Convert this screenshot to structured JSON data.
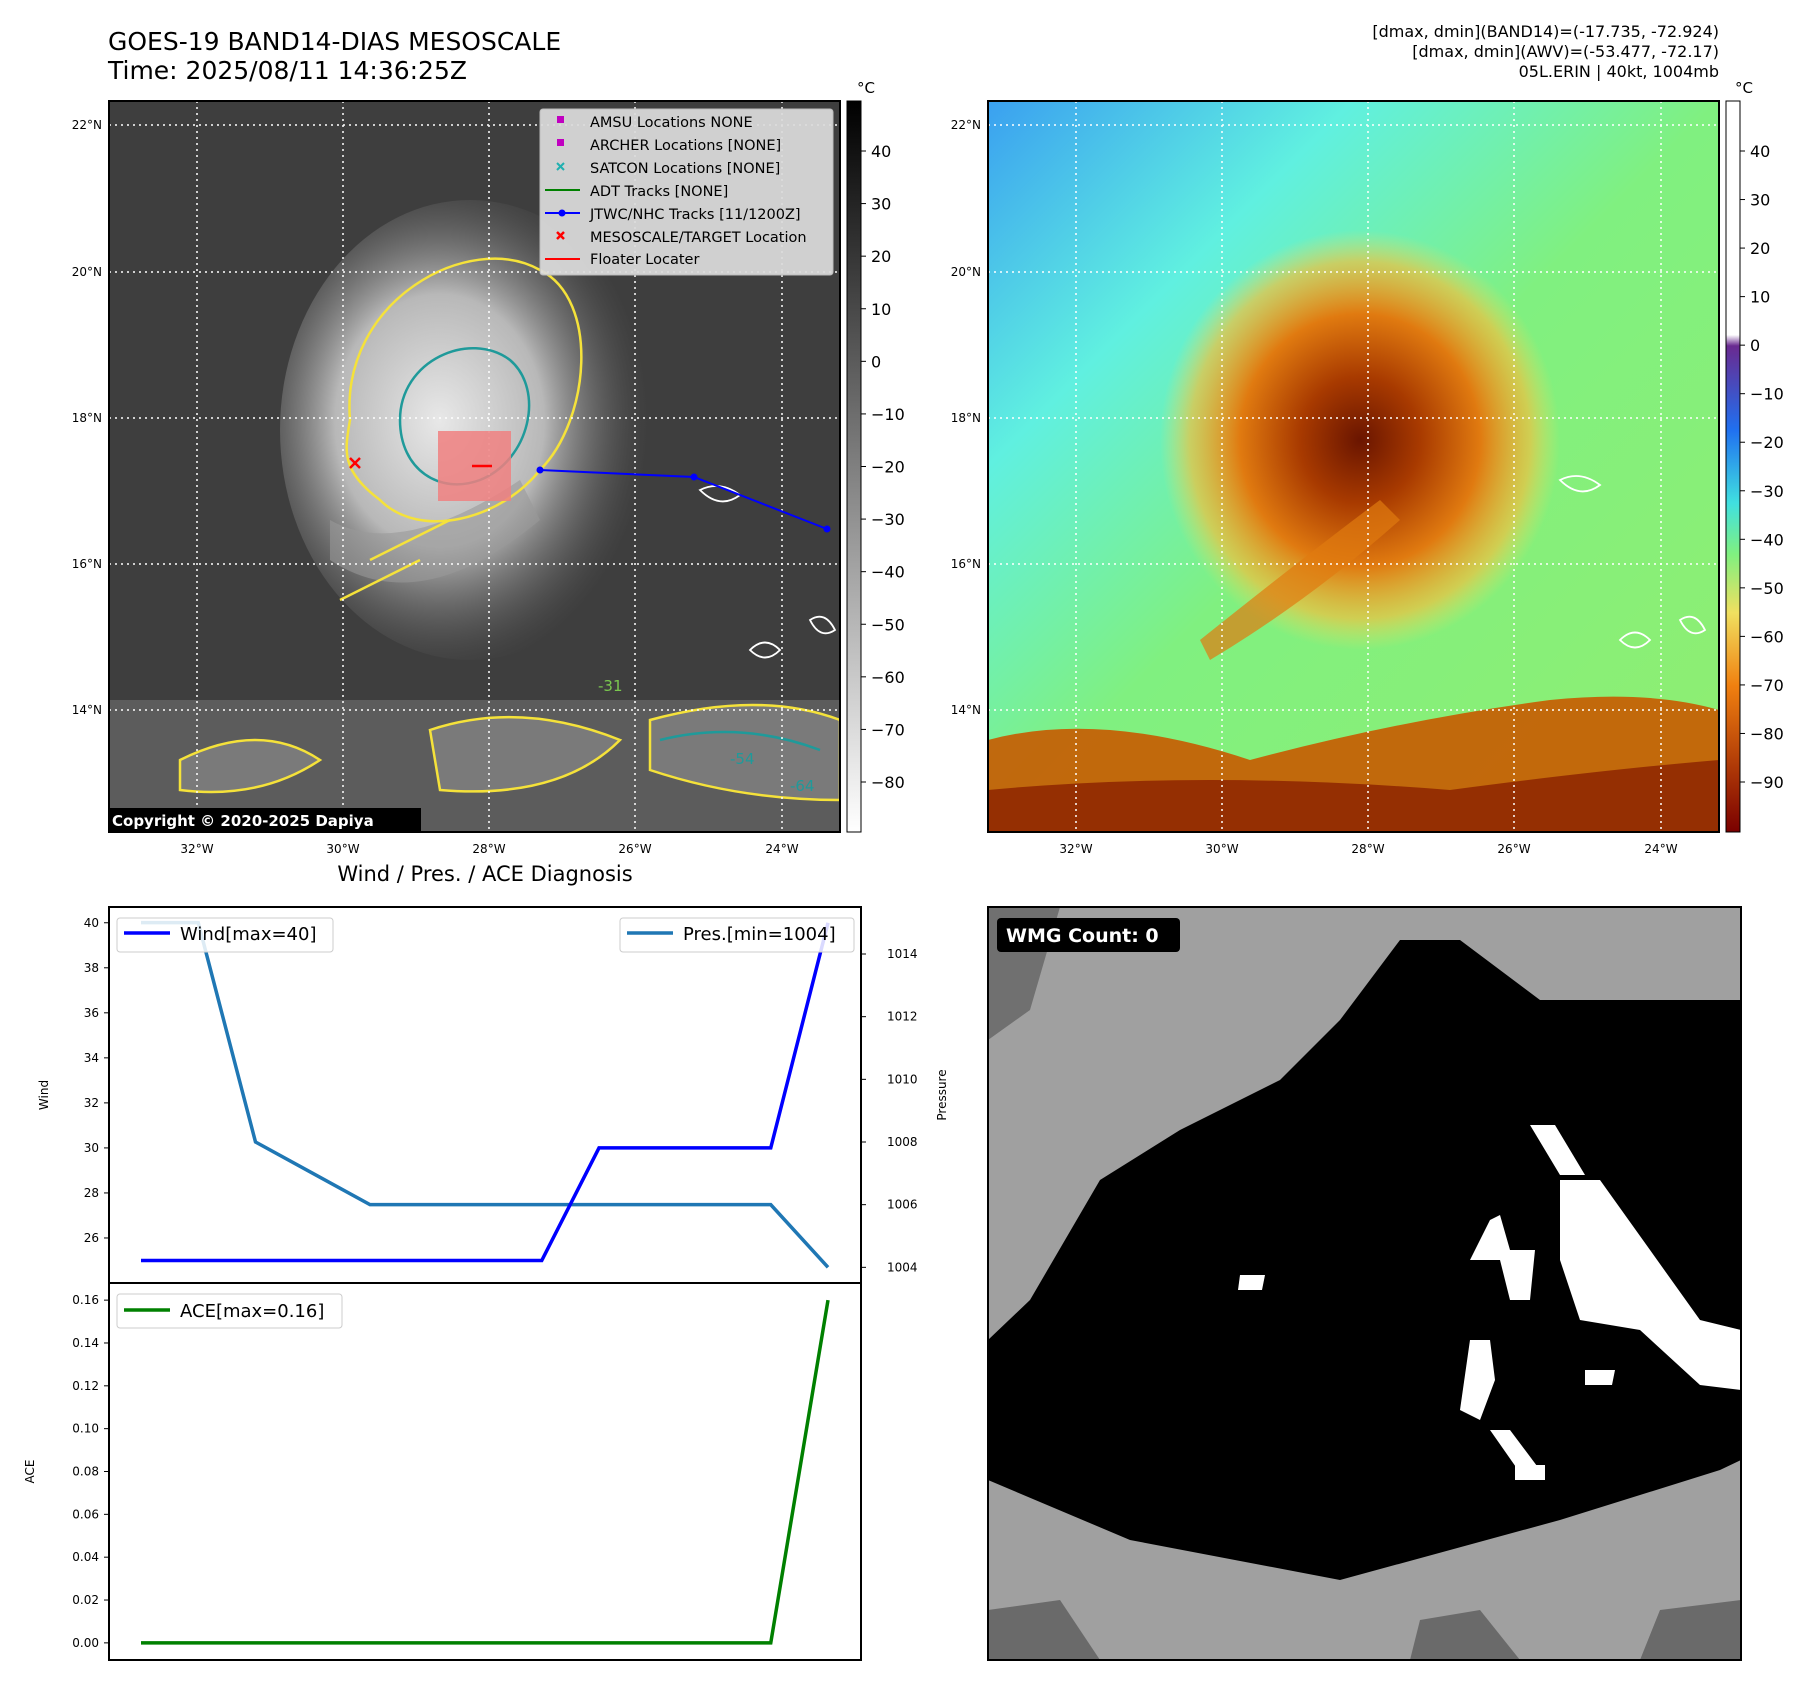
{
  "header": {
    "title_line1": "GOES-19 BAND14-DIAS MESOSCALE",
    "title_line2": "Time: 2025/08/11 14:36:25Z",
    "info_line1": "[dmax, dmin](BAND14)=(-17.735, -72.924)",
    "info_line2": "[dmax, dmin](AWV)=(-53.477, -72.17)",
    "info_line3": "05L.ERIN | 40kt, 1004mb"
  },
  "ir_map": {
    "lat_ticks": [
      "22°N",
      "20°N",
      "18°N",
      "16°N",
      "14°N"
    ],
    "lon_ticks": [
      "32°W",
      "30°W",
      "28°W",
      "26°W",
      "24°W"
    ],
    "copyright": "Copyright © 2020-2025 Dapiya",
    "contour_labels": [
      "-31",
      "-54",
      "-64"
    ],
    "legend": [
      {
        "label": "AMSU Locations NONE",
        "color": "#c000c0",
        "marker": "square"
      },
      {
        "label": "ARCHER Locations [NONE]",
        "color": "#c000c0",
        "marker": "square"
      },
      {
        "label": "SATCON Locations [NONE]",
        "color": "#20b0b0",
        "marker": "x"
      },
      {
        "label": "ADT Tracks [NONE]",
        "color": "#008000",
        "marker": "line"
      },
      {
        "label": "JTWC/NHC Tracks [11/1200Z]",
        "color": "#0000ff",
        "marker": "line-dot"
      },
      {
        "label": "MESOSCALE/TARGET Location",
        "color": "#ff0000",
        "marker": "x"
      },
      {
        "label": "Floater Locater",
        "color": "#ff0000",
        "marker": "line"
      }
    ],
    "colorbar_unit": "°C",
    "colorbar_ticks": [
      "40",
      "30",
      "20",
      "10",
      "0",
      "−10",
      "−20",
      "−30",
      "−40",
      "−50",
      "−60",
      "−70",
      "−80"
    ]
  },
  "awv_map": {
    "lat_ticks": [
      "22°N",
      "20°N",
      "18°N",
      "16°N",
      "14°N"
    ],
    "lon_ticks": [
      "32°W",
      "30°W",
      "28°W",
      "26°W",
      "24°W"
    ],
    "colorbar_unit": "°C",
    "colorbar_ticks": [
      "40",
      "30",
      "20",
      "10",
      "0",
      "−10",
      "−20",
      "−30",
      "−40",
      "−50",
      "−60",
      "−70",
      "−80",
      "−90"
    ]
  },
  "wmg": {
    "badge": "WMG Count: 0"
  },
  "chart_data": [
    {
      "type": "line",
      "title": "Wind / Pres. / ACE Diagnosis",
      "x": [
        0,
        1,
        2,
        3,
        4,
        5,
        6,
        7,
        8,
        9,
        10,
        11,
        12
      ],
      "series": [
        {
          "name": "Wind[max=40]",
          "axis": "left",
          "color": "#0000ff",
          "values": [
            25,
            25,
            25,
            25,
            25,
            25,
            25,
            25,
            30,
            30,
            30,
            30,
            40
          ]
        },
        {
          "name": "Pres.[min=1004]",
          "axis": "right",
          "color": "#1f77b4",
          "values": [
            1015,
            1015,
            1008,
            1007,
            1006,
            1006,
            1006,
            1006,
            1006,
            1006,
            1006,
            1006,
            1004
          ]
        }
      ],
      "ylabel": "Wind",
      "ylabel_right": "Pressure",
      "ylim": [
        24,
        40.7
      ],
      "ylim_right": [
        1003.5,
        1015.5
      ],
      "yticks": [
        26,
        28,
        30,
        32,
        34,
        36,
        38,
        40
      ],
      "yticks_right": [
        1004,
        1006,
        1008,
        1010,
        1012,
        1014
      ]
    },
    {
      "type": "line",
      "x": [
        0,
        1,
        2,
        3,
        4,
        5,
        6,
        7,
        8,
        9,
        10,
        11,
        12
      ],
      "series": [
        {
          "name": "ACE[max=0.16]",
          "color": "#008000",
          "values": [
            0,
            0,
            0,
            0,
            0,
            0,
            0,
            0,
            0,
            0,
            0,
            0,
            0.16
          ]
        }
      ],
      "ylabel": "ACE",
      "ylim": [
        -0.008,
        0.168
      ],
      "yticks": [
        0.0,
        0.02,
        0.04,
        0.06,
        0.08,
        0.1,
        0.12,
        0.14,
        0.16
      ]
    }
  ]
}
